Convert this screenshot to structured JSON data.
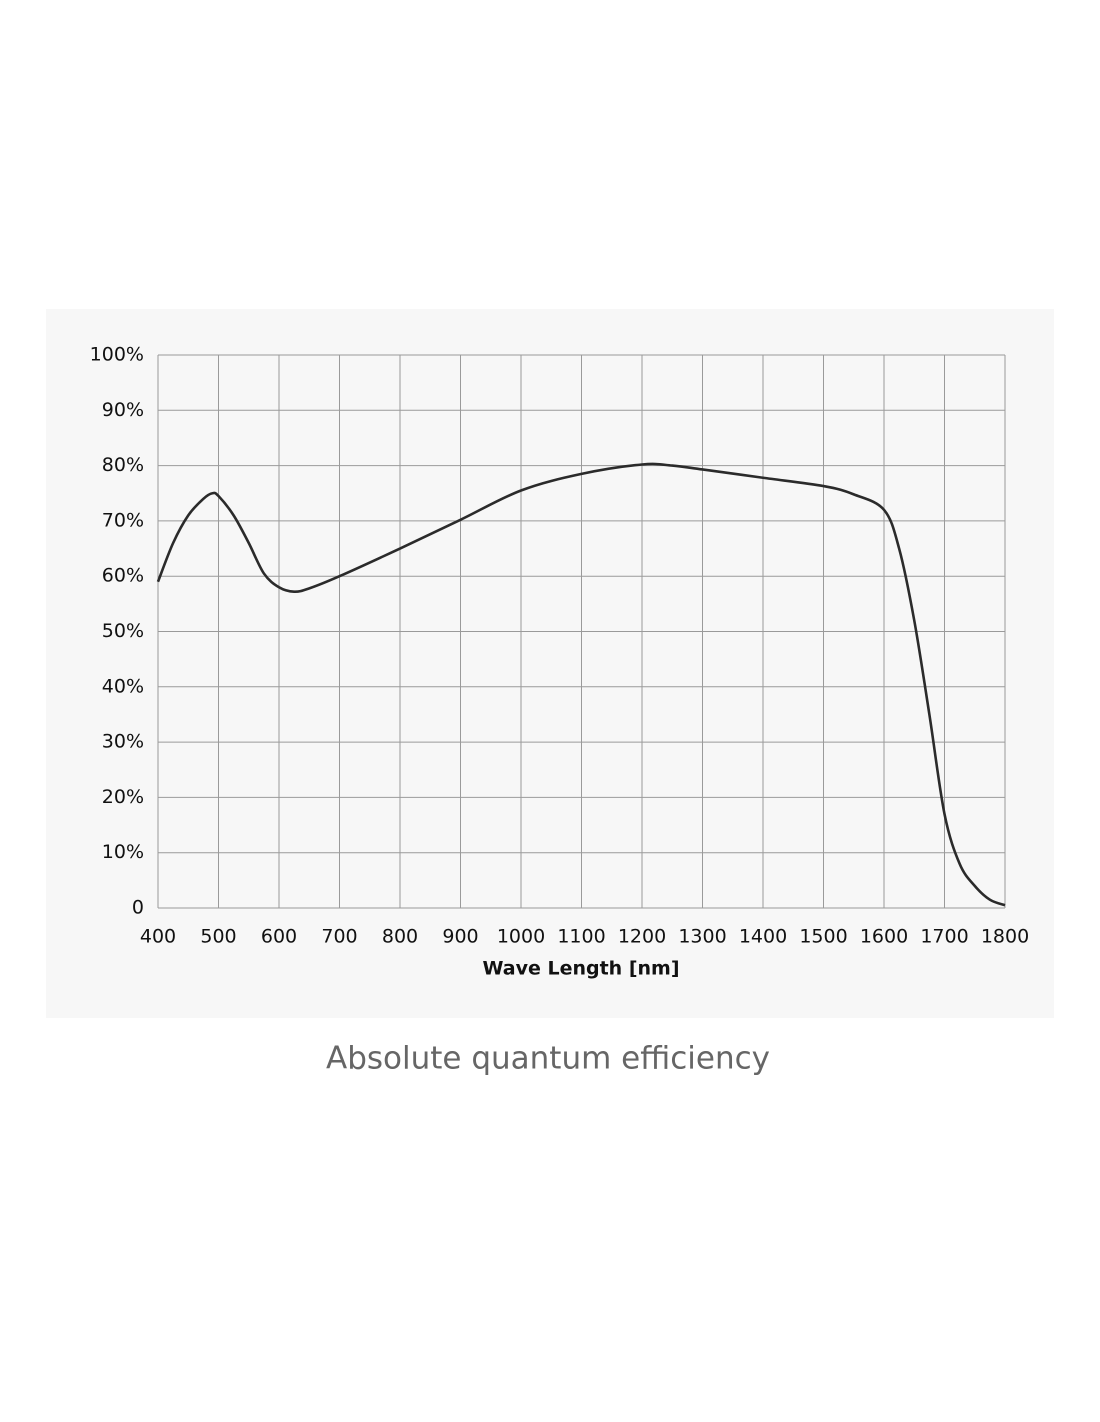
{
  "chart_data": {
    "type": "line",
    "x_label": "Wave Length [nm]",
    "caption": "Absolute quantum efficiency",
    "x": [
      400,
      425,
      450,
      475,
      490,
      500,
      525,
      550,
      575,
      600,
      625,
      650,
      700,
      800,
      900,
      1000,
      1100,
      1200,
      1250,
      1300,
      1400,
      1500,
      1550,
      1600,
      1625,
      1650,
      1675,
      1700,
      1725,
      1750,
      1775,
      1800
    ],
    "series": [
      {
        "color": "#2b2b2b",
        "values": [
          59,
          66,
          71,
          74,
          75,
          74.5,
          71,
          66,
          60.5,
          58,
          57.2,
          57.8,
          60,
          65,
          70.2,
          75.5,
          78.5,
          80.2,
          80,
          79.3,
          77.8,
          76.3,
          74.8,
          72,
          65,
          52,
          35,
          17,
          8,
          4,
          1.5,
          0.5
        ]
      }
    ],
    "xlim": [
      400,
      1800
    ],
    "xticks": [
      400,
      500,
      600,
      700,
      800,
      900,
      1000,
      1100,
      1200,
      1300,
      1400,
      1500,
      1600,
      1700,
      1800
    ],
    "ylim": [
      0,
      100
    ],
    "yticks": [
      0,
      {
        "value": 10,
        "label": "10%"
      },
      {
        "value": 20,
        "label": "20%"
      },
      {
        "value": 30,
        "label": "30%"
      },
      {
        "value": 40,
        "label": "40%"
      },
      {
        "value": 50,
        "label": "50%"
      },
      {
        "value": 60,
        "label": "60%"
      },
      {
        "value": 70,
        "label": "70%"
      },
      {
        "value": 80,
        "label": "80%"
      },
      {
        "value": 90,
        "label": "90%"
      },
      {
        "value": 100,
        "label": "100%"
      }
    ],
    "grid": true
  }
}
